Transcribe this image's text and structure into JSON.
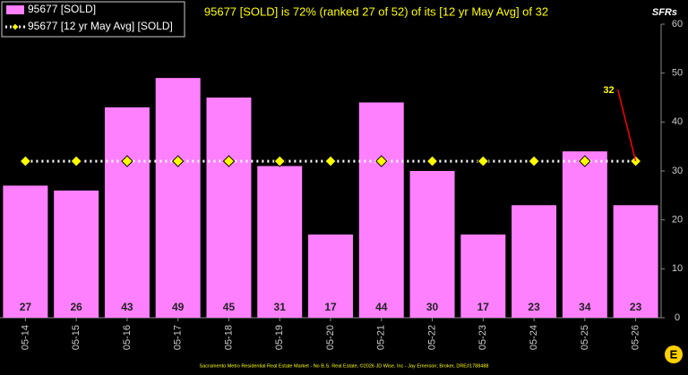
{
  "chart_data": {
    "type": "bar",
    "title": "95677 [SOLD] is 72% (ranked 27 of 52) of its [12 yr May Avg] of 32",
    "y_axis_label": "SFRs",
    "footer": "Sacramento Metro Residential Real Estate Market - No B.S. Real Estate, ©2026 JD Wise, Inc - Jay Emerson; Broker, DRE#1788488",
    "annotation": "32",
    "categories": [
      "05-14",
      "05-15",
      "05-16",
      "05-17",
      "05-18",
      "05-19",
      "05-20",
      "05-21",
      "05-22",
      "05-23",
      "05-24",
      "05-25",
      "05-26"
    ],
    "series": [
      {
        "name": "95677 [SOLD]",
        "type": "bar",
        "color": "#ff80ff",
        "values": [
          27,
          26,
          43,
          49,
          45,
          31,
          17,
          44,
          30,
          17,
          23,
          34,
          23
        ]
      },
      {
        "name": "95677 [12 yr May Avg] [SOLD]",
        "type": "line",
        "color": "#ffff00",
        "values": [
          32,
          32,
          32,
          32,
          32,
          32,
          32,
          32,
          32,
          32,
          32,
          32,
          32
        ]
      }
    ],
    "ylim": [
      0,
      60
    ],
    "yticks": [
      0,
      10,
      20,
      30,
      40,
      50,
      60
    ],
    "grid": false
  }
}
